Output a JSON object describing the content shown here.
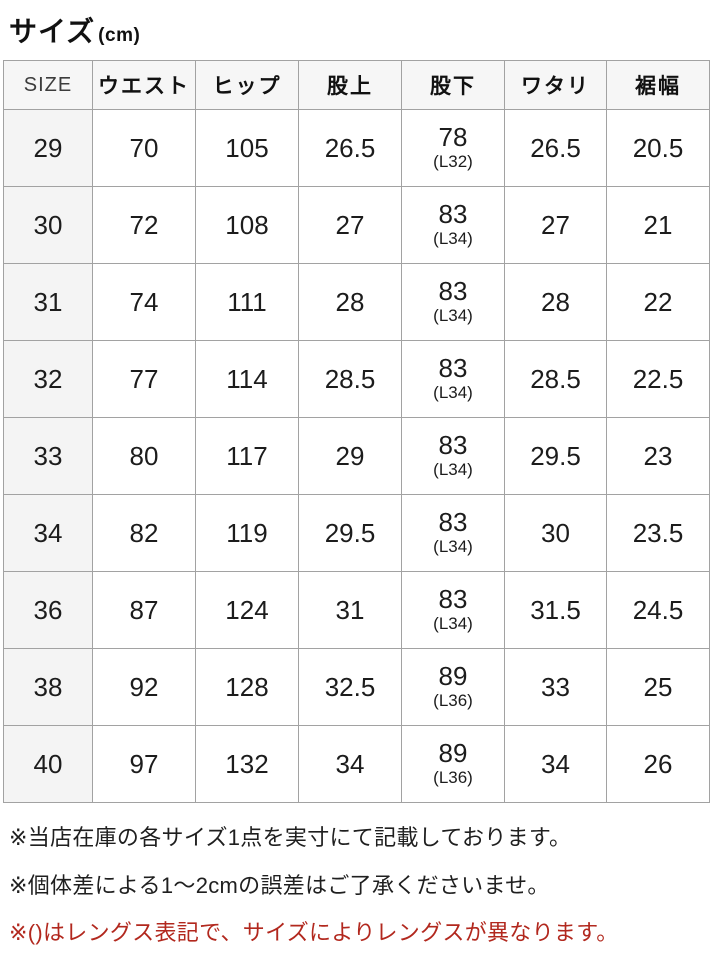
{
  "title": {
    "main": "サイズ",
    "unit": "(cm)"
  },
  "table": {
    "headers": [
      "SIZE",
      "ウエスト",
      "ヒップ",
      "股上",
      "股下",
      "ワタリ",
      "裾幅"
    ],
    "rows": [
      {
        "size": "29",
        "waist": "70",
        "hip": "105",
        "rise": "26.5",
        "inseam": "78",
        "inseam_length": "(L32)",
        "thigh": "26.5",
        "hem": "20.5"
      },
      {
        "size": "30",
        "waist": "72",
        "hip": "108",
        "rise": "27",
        "inseam": "83",
        "inseam_length": "(L34)",
        "thigh": "27",
        "hem": "21"
      },
      {
        "size": "31",
        "waist": "74",
        "hip": "111",
        "rise": "28",
        "inseam": "83",
        "inseam_length": "(L34)",
        "thigh": "28",
        "hem": "22"
      },
      {
        "size": "32",
        "waist": "77",
        "hip": "114",
        "rise": "28.5",
        "inseam": "83",
        "inseam_length": "(L34)",
        "thigh": "28.5",
        "hem": "22.5"
      },
      {
        "size": "33",
        "waist": "80",
        "hip": "117",
        "rise": "29",
        "inseam": "83",
        "inseam_length": "(L34)",
        "thigh": "29.5",
        "hem": "23"
      },
      {
        "size": "34",
        "waist": "82",
        "hip": "119",
        "rise": "29.5",
        "inseam": "83",
        "inseam_length": "(L34)",
        "thigh": "30",
        "hem": "23.5"
      },
      {
        "size": "36",
        "waist": "87",
        "hip": "124",
        "rise": "31",
        "inseam": "83",
        "inseam_length": "(L34)",
        "thigh": "31.5",
        "hem": "24.5"
      },
      {
        "size": "38",
        "waist": "92",
        "hip": "128",
        "rise": "32.5",
        "inseam": "89",
        "inseam_length": "(L36)",
        "thigh": "33",
        "hem": "25"
      },
      {
        "size": "40",
        "waist": "97",
        "hip": "132",
        "rise": "34",
        "inseam": "89",
        "inseam_length": "(L36)",
        "thigh": "34",
        "hem": "26"
      }
    ]
  },
  "notes": [
    {
      "text": "※当店在庫の各サイズ1点を実寸にて記載しております。",
      "color": "#1f1f1f"
    },
    {
      "text": "※個体差による1〜2cmの誤差はご了承くださいませ。",
      "color": "#1f1f1f"
    },
    {
      "text": "※()はレングス表記で、サイズによりレングスが異なります。",
      "color": "#b2281e"
    }
  ],
  "colors": {
    "header_bg": "#f6f6f6",
    "size_col_bg": "#f4f4f4",
    "border": "#a2a2a2",
    "text": "#1c1c1c",
    "note_red": "#b2281e"
  }
}
